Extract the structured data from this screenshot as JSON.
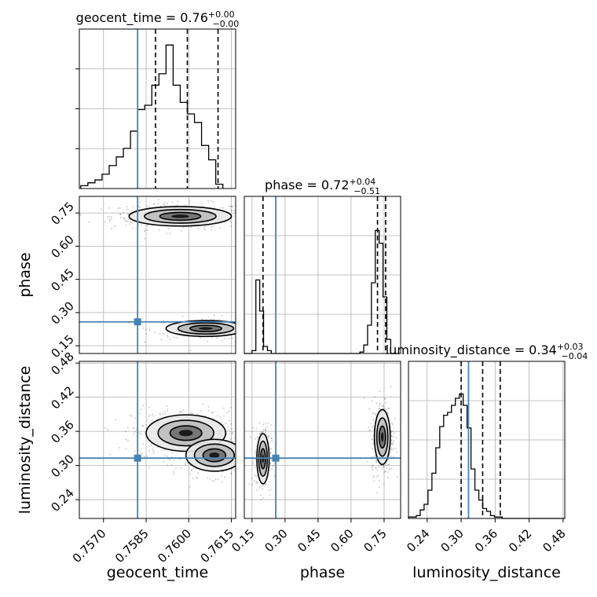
{
  "chart_data": {
    "type": "corner",
    "parameters": [
      "geocent_time",
      "phase",
      "luminosity_distance"
    ],
    "ranges": {
      "geocent_time": [
        0.75615,
        0.76165
      ],
      "phase": [
        0.115,
        0.825
      ],
      "luminosity_distance": [
        0.207,
        0.483
      ]
    },
    "ticks": {
      "geocent_time": [
        "0.7570",
        "0.7585",
        "0.7600",
        "0.7615"
      ],
      "phase": [
        "0.15",
        "0.30",
        "0.45",
        "0.60",
        "0.75"
      ],
      "luminosity_distance": [
        "0.24",
        "0.30",
        "0.36",
        "0.42",
        "0.48"
      ]
    },
    "axis_labels": {
      "geocent_time": "geocent_time",
      "phase": "phase",
      "luminosity_distance": "luminosity_distance"
    },
    "titles": {
      "geocent_time": {
        "prefix": "geocent_time = ",
        "value": "0.76",
        "plus": "+0.00",
        "minus": "−0.00"
      },
      "phase": {
        "prefix": "phase = ",
        "value": "0.72",
        "plus": "+0.04",
        "minus": "−0.51"
      },
      "luminosity_distance": {
        "prefix": "luminosity_distance = ",
        "value": "0.34",
        "plus": "+0.03",
        "minus": "−0.04"
      }
    },
    "truths": {
      "geocent_time": 0.7582,
      "phase": 0.258,
      "luminosity_distance": 0.313
    },
    "quantiles": {
      "geocent_time": [
        0.75883,
        0.75995,
        0.76103
      ],
      "phase": [
        0.2,
        0.72,
        0.757
      ],
      "luminosity_distance": [
        0.3,
        0.338,
        0.369
      ]
    },
    "histograms": {
      "geocent_time": {
        "edges_start": 0.7562,
        "bin_width": 0.00025,
        "counts": [
          0.02,
          0.04,
          0.06,
          0.1,
          0.16,
          0.22,
          0.28,
          0.4,
          0.55,
          0.58,
          0.72,
          0.8,
          1.0,
          0.72,
          0.6,
          0.52,
          0.46,
          0.3,
          0.2,
          0.03
        ]
      },
      "phase": {
        "edges_start": 0.115,
        "bin_width": 0.0175,
        "counts": [
          0.0,
          0.0,
          0.02,
          0.52,
          0.3,
          0.05,
          0.02,
          0.0,
          0.0,
          0.0,
          0.0,
          0.0,
          0.0,
          0.0,
          0.0,
          0.0,
          0.0,
          0.0,
          0.0,
          0.0,
          0.0,
          0.0,
          0.0,
          0.0,
          0.0,
          0.0,
          0.0,
          0.0,
          0.0,
          0.0,
          0.01,
          0.06,
          0.2,
          0.5,
          0.87,
          0.78,
          0.4,
          0.1,
          0.0,
          0.0
        ]
      },
      "luminosity_distance": {
        "edges_start": 0.207,
        "bin_width": 0.0069,
        "counts": [
          0.01,
          0.01,
          0.02,
          0.06,
          0.1,
          0.2,
          0.32,
          0.5,
          0.65,
          0.73,
          0.75,
          0.8,
          0.85,
          0.88,
          0.8,
          0.64,
          0.35,
          0.2,
          0.13,
          0.07,
          0.05,
          0.02,
          0.01,
          0.01,
          0.0,
          0.0,
          0.0,
          0.0,
          0.0,
          0.0,
          0.0,
          0.0,
          0.0,
          0.0,
          0.0,
          0.0,
          0.0,
          0.0,
          0.0,
          0.0
        ]
      }
    },
    "density_clusters": {
      "phase_vs_geocent_time": [
        {
          "cx": 0.7597,
          "cy": 0.735,
          "sx": 0.0009,
          "sy": 0.022,
          "w": 1.0
        },
        {
          "cx": 0.7606,
          "cy": 0.228,
          "sx": 0.0007,
          "sy": 0.018,
          "w": 0.55
        }
      ],
      "luminosity_distance_vs_geocent_time": [
        {
          "cx": 0.7599,
          "cy": 0.357,
          "sx": 0.0007,
          "sy": 0.016,
          "w": 1.0
        },
        {
          "cx": 0.7609,
          "cy": 0.318,
          "sx": 0.0005,
          "sy": 0.014,
          "w": 0.8
        }
      ],
      "luminosity_distance_vs_phase": [
        {
          "cx": 0.2,
          "cy": 0.312,
          "sx": 0.014,
          "sy": 0.022,
          "w": 0.6
        },
        {
          "cx": 0.742,
          "cy": 0.35,
          "sx": 0.018,
          "sy": 0.024,
          "w": 1.0
        }
      ]
    },
    "colors": {
      "truth": "#4682b4",
      "lines": "#000000",
      "grid": "#b0b0b0"
    },
    "grid": true
  }
}
